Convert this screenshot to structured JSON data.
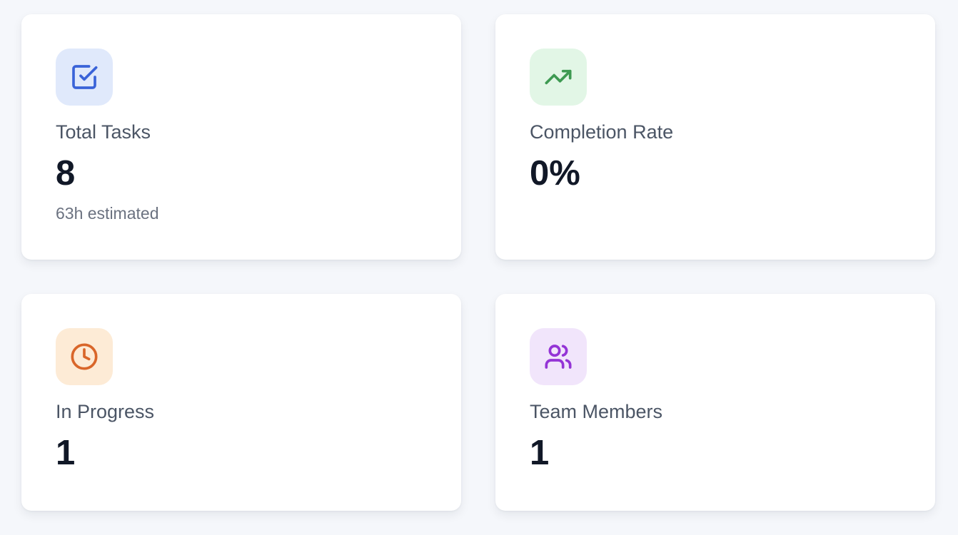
{
  "stats": {
    "total_tasks": {
      "icon": "checkbox-icon",
      "accent": "#3a63d8",
      "label": "Total Tasks",
      "value": "8",
      "subtext": "63h estimated"
    },
    "completion_rate": {
      "icon": "trending-up-icon",
      "accent": "#3e9a52",
      "label": "Completion Rate",
      "value": "0%"
    },
    "in_progress": {
      "icon": "clock-icon",
      "accent": "#d9662a",
      "label": "In Progress",
      "value": "1"
    },
    "team_members": {
      "icon": "users-icon",
      "accent": "#9434d6",
      "label": "Team Members",
      "value": "1"
    }
  }
}
